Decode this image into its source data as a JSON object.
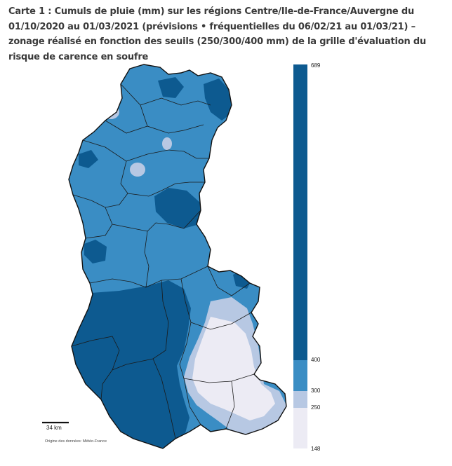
{
  "title": "Carte 1 : Cumuls de pluie (mm) sur les régions Centre/Ile-de-France/Auvergne du 01/10/2020 au 01/03/2021 (prévisions • fréquentielles du 06/02/21 au 01/03/21) – zonage réalisé en fonction des seuils (250/300/400 mm) de la grille d'évaluation du risque de carence en soufre",
  "legend": {
    "max_label": "689",
    "threshold_400": "400",
    "threshold_300": "300",
    "threshold_250": "250",
    "min_label": "148",
    "classes": [
      {
        "range": "400–689",
        "color": "#0d5a90"
      },
      {
        "range": "300–400",
        "color": "#3a8dc4"
      },
      {
        "range": "250–300",
        "color": "#b7c8e3"
      },
      {
        "range": "148–250",
        "color": "#ecebf4"
      }
    ]
  },
  "scale": {
    "label": "34 km"
  },
  "source": "Origine des données: Météo-France",
  "colors": {
    "dark": "#0d5a90",
    "mid": "#3a8dc4",
    "light": "#b7c8e3",
    "pale": "#ecebf4",
    "border": "#1a1a1a"
  }
}
